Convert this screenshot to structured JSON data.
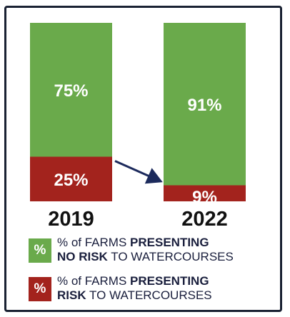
{
  "chart_data": {
    "type": "bar",
    "stacked": true,
    "categories": [
      "2019",
      "2022"
    ],
    "series": [
      {
        "name": "% of FARMS PRESENTING RISK TO WATERCOURSES",
        "values": [
          25,
          9
        ],
        "labels": [
          "25%",
          "9%"
        ],
        "color": "#a3231d"
      },
      {
        "name": "% of FARMS PRESENTING NO RISK TO WATERCOURSES",
        "values": [
          75,
          91
        ],
        "labels": [
          "75%",
          "91%"
        ],
        "color": "#6aaa4b"
      }
    ],
    "ylim": [
      0,
      100
    ],
    "arrow": {
      "from": "2019",
      "to": "2022",
      "color": "#1c2a5c"
    }
  },
  "legend": {
    "no_risk": {
      "swatch": "%",
      "color": "#6aaa4b",
      "line1_a": "% of FARMS ",
      "line1_b": "PRESENTING",
      "line2_a": "NO RISK",
      "line2_b": " TO WATERCOURSES"
    },
    "risk": {
      "swatch": "%",
      "color": "#a3231d",
      "line1_a": "% of FARMS ",
      "line1_b": "PRESENTING",
      "line2_a": "RISK",
      "line2_b": " TO WATERCOURSES"
    }
  }
}
